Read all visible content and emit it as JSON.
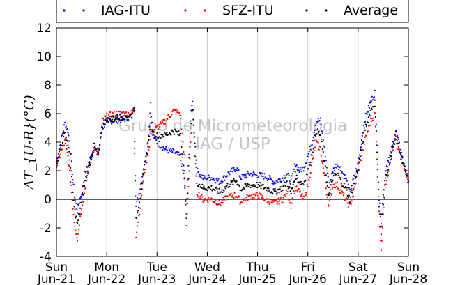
{
  "chart_data": {
    "type": "scatter",
    "title": "",
    "xlabel": "",
    "ylabel": "ΔT_{U-R}(°C)",
    "ylim": [
      -4,
      12
    ],
    "yticks": [
      -4,
      -2,
      0,
      2,
      4,
      6,
      8,
      10,
      12
    ],
    "xlim": [
      "2015-06-21",
      "2015-06-28"
    ],
    "x_ticks": [
      {
        "x": "2015-06-21",
        "day": "Sun",
        "date": "Jun-21"
      },
      {
        "x": "2015-06-22",
        "day": "Mon",
        "date": "Jun-22"
      },
      {
        "x": "2015-06-23",
        "day": "Tue",
        "date": "Jun-23"
      },
      {
        "x": "2015-06-24",
        "day": "Wed",
        "date": "Jun-24"
      },
      {
        "x": "2015-06-25",
        "day": "Thu",
        "date": "Jun-25"
      },
      {
        "x": "2015-06-26",
        "day": "Fri",
        "date": "Jun-26"
      },
      {
        "x": "2015-06-27",
        "day": "Sat",
        "date": "Jun-27"
      },
      {
        "x": "2015-06-28",
        "day": "Sun",
        "date": "Jun-28"
      }
    ],
    "grid": "vertical",
    "reference_line_y": 0,
    "legend": {
      "placement": "top, outside plot"
    },
    "watermark": [
      "Grupo de Micrometeorologia",
      "IAG / USP"
    ],
    "series": [
      {
        "name": "IAG-ITU",
        "color": "#0000ff",
        "points": [
          [
            "2015-06-21T00:00",
            2.6
          ],
          [
            "2015-06-21T02:00",
            4.0
          ],
          [
            "2015-06-21T04:00",
            5.3
          ],
          [
            "2015-06-21T05:30",
            4.8
          ],
          [
            "2015-06-21T07:00",
            3.0
          ],
          [
            "2015-06-21T08:30",
            0.3
          ],
          [
            "2015-06-21T10:00",
            -0.8
          ],
          [
            "2015-06-21T12:00",
            0.5
          ],
          [
            "2015-06-21T14:00",
            2.0
          ],
          [
            "2015-06-21T16:00",
            2.8
          ],
          [
            "2015-06-21T18:00",
            3.6
          ],
          [
            "2015-06-21T20:00",
            3.2
          ],
          [
            "2015-06-21T22:00",
            5.0
          ],
          [
            "2015-06-22T00:00",
            5.5
          ],
          [
            "2015-06-22T04:00",
            5.5
          ],
          [
            "2015-06-22T08:00",
            5.6
          ],
          [
            "2015-06-22T12:00",
            5.8
          ],
          [
            "2015-06-22T13:00",
            6.6
          ],
          [
            "2015-06-22T14:00",
            -0.5
          ],
          [
            "2015-06-22T16:00",
            0.8
          ],
          [
            "2015-06-22T18:00",
            2.5
          ],
          [
            "2015-06-22T20:00",
            4.5
          ],
          [
            "2015-06-22T21:00",
            6.8
          ],
          [
            "2015-06-22T22:00",
            4.5
          ],
          [
            "2015-06-23T00:00",
            4.0
          ],
          [
            "2015-06-23T04:00",
            3.5
          ],
          [
            "2015-06-23T08:00",
            3.3
          ],
          [
            "2015-06-23T11:00",
            3.0
          ],
          [
            "2015-06-23T13:00",
            1.5
          ],
          [
            "2015-06-23T14:00",
            -1.0
          ],
          [
            "2015-06-23T16:00",
            5.5
          ],
          [
            "2015-06-23T17:00",
            7.0
          ],
          [
            "2015-06-23T19:00",
            2.0
          ],
          [
            "2015-06-23T22:00",
            1.5
          ],
          [
            "2015-06-24T02:00",
            1.5
          ],
          [
            "2015-06-24T06:00",
            1.2
          ],
          [
            "2015-06-24T10:00",
            1.8
          ],
          [
            "2015-06-24T14:00",
            2.2
          ],
          [
            "2015-06-24T16:00",
            1.5
          ],
          [
            "2015-06-24T20:00",
            1.8
          ],
          [
            "2015-06-25T00:00",
            1.7
          ],
          [
            "2015-06-25T04:00",
            1.6
          ],
          [
            "2015-06-25T08:00",
            1.2
          ],
          [
            "2015-06-25T12:00",
            1.5
          ],
          [
            "2015-06-25T14:00",
            1.8
          ],
          [
            "2015-06-25T16:00",
            1.2
          ],
          [
            "2015-06-25T18:00",
            2.5
          ],
          [
            "2015-06-25T20:00",
            2.0
          ],
          [
            "2015-06-25T22:00",
            2.2
          ],
          [
            "2015-06-26T00:00",
            3.0
          ],
          [
            "2015-06-26T02:00",
            4.0
          ],
          [
            "2015-06-26T04:00",
            5.5
          ],
          [
            "2015-06-26T06:00",
            5.5
          ],
          [
            "2015-06-26T08:00",
            3.5
          ],
          [
            "2015-06-26T10:00",
            1.0
          ],
          [
            "2015-06-26T12:00",
            2.0
          ],
          [
            "2015-06-26T14:00",
            2.5
          ],
          [
            "2015-06-26T16:00",
            2.0
          ],
          [
            "2015-06-26T18:00",
            1.5
          ],
          [
            "2015-06-26T20:00",
            0.5
          ],
          [
            "2015-06-26T22:00",
            1.5
          ],
          [
            "2015-06-27T00:00",
            2.5
          ],
          [
            "2015-06-27T03:00",
            5.5
          ],
          [
            "2015-06-27T06:00",
            6.8
          ],
          [
            "2015-06-27T08:00",
            7.5
          ],
          [
            "2015-06-27T09:00",
            4.0
          ],
          [
            "2015-06-27T10:00",
            0.0
          ],
          [
            "2015-06-27T11:00",
            -1.5
          ],
          [
            "2015-06-27T13:00",
            2.0
          ],
          [
            "2015-06-27T16:00",
            3.5
          ],
          [
            "2015-06-27T18:00",
            4.8
          ],
          [
            "2015-06-27T21:00",
            3.0
          ],
          [
            "2015-06-28T00:00",
            1.2
          ]
        ]
      },
      {
        "name": "SFZ-ITU",
        "color": "#ff0000",
        "points": [
          [
            "2015-06-21T00:00",
            2.3
          ],
          [
            "2015-06-21T02:00",
            3.2
          ],
          [
            "2015-06-21T04:00",
            4.0
          ],
          [
            "2015-06-21T05:30",
            3.0
          ],
          [
            "2015-06-21T07:00",
            1.0
          ],
          [
            "2015-06-21T08:30",
            -1.5
          ],
          [
            "2015-06-21T10:00",
            -2.8
          ],
          [
            "2015-06-21T12:00",
            -0.5
          ],
          [
            "2015-06-21T14:00",
            1.0
          ],
          [
            "2015-06-21T16:00",
            2.5
          ],
          [
            "2015-06-21T18:00",
            3.8
          ],
          [
            "2015-06-21T20:00",
            3.0
          ],
          [
            "2015-06-21T22:00",
            5.5
          ],
          [
            "2015-06-22T00:00",
            5.8
          ],
          [
            "2015-06-22T04:00",
            6.0
          ],
          [
            "2015-06-22T08:00",
            6.0
          ],
          [
            "2015-06-22T12:00",
            6.0
          ],
          [
            "2015-06-22T13:00",
            6.2
          ],
          [
            "2015-06-22T14:00",
            -2.5
          ],
          [
            "2015-06-22T16:00",
            -0.5
          ],
          [
            "2015-06-22T18:00",
            2.0
          ],
          [
            "2015-06-22T20:00",
            3.5
          ],
          [
            "2015-06-22T21:00",
            4.5
          ],
          [
            "2015-06-22T22:00",
            4.8
          ],
          [
            "2015-06-23T00:00",
            5.0
          ],
          [
            "2015-06-23T04:00",
            5.5
          ],
          [
            "2015-06-23T08:00",
            6.2
          ],
          [
            "2015-06-23T11:00",
            6.0
          ],
          [
            "2015-06-23T13:00",
            3.0
          ],
          [
            "2015-06-23T14:00",
            -2.0
          ],
          [
            "2015-06-23T16:00",
            4.0
          ],
          [
            "2015-06-23T17:00",
            6.0
          ],
          [
            "2015-06-23T19:00",
            0.5
          ],
          [
            "2015-06-23T22:00",
            0.0
          ],
          [
            "2015-06-24T02:00",
            0.0
          ],
          [
            "2015-06-24T06:00",
            -0.3
          ],
          [
            "2015-06-24T10:00",
            0.2
          ],
          [
            "2015-06-24T14:00",
            0.3
          ],
          [
            "2015-06-24T16:00",
            -0.2
          ],
          [
            "2015-06-24T20:00",
            0.2
          ],
          [
            "2015-06-25T00:00",
            0.3
          ],
          [
            "2015-06-25T04:00",
            0.0
          ],
          [
            "2015-06-25T08:00",
            -0.3
          ],
          [
            "2015-06-25T12:00",
            0.0
          ],
          [
            "2015-06-25T14:00",
            0.5
          ],
          [
            "2015-06-25T16:00",
            -0.4
          ],
          [
            "2015-06-25T18:00",
            0.8
          ],
          [
            "2015-06-25T20:00",
            0.5
          ],
          [
            "2015-06-25T22:00",
            0.0
          ],
          [
            "2015-06-26T00:00",
            1.0
          ],
          [
            "2015-06-26T02:00",
            2.5
          ],
          [
            "2015-06-26T04:00",
            4.0
          ],
          [
            "2015-06-26T06:00",
            3.5
          ],
          [
            "2015-06-26T08:00",
            1.5
          ],
          [
            "2015-06-26T10:00",
            -0.5
          ],
          [
            "2015-06-26T12:00",
            1.0
          ],
          [
            "2015-06-26T14:00",
            1.0
          ],
          [
            "2015-06-26T16:00",
            0.5
          ],
          [
            "2015-06-26T18:00",
            0.0
          ],
          [
            "2015-06-26T20:00",
            -0.5
          ],
          [
            "2015-06-26T22:00",
            0.5
          ],
          [
            "2015-06-27T00:00",
            2.0
          ],
          [
            "2015-06-27T03:00",
            4.0
          ],
          [
            "2015-06-27T06:00",
            5.5
          ],
          [
            "2015-06-27T08:00",
            6.0
          ],
          [
            "2015-06-27T09:00",
            3.0
          ],
          [
            "2015-06-27T10:00",
            -1.0
          ],
          [
            "2015-06-27T11:00",
            -3.5
          ],
          [
            "2015-06-27T13:00",
            1.0
          ],
          [
            "2015-06-27T16:00",
            3.0
          ],
          [
            "2015-06-27T18:00",
            4.2
          ],
          [
            "2015-06-27T21:00",
            2.5
          ],
          [
            "2015-06-28T00:00",
            1.5
          ]
        ]
      },
      {
        "name": "Average",
        "color": "#000000",
        "points": [
          [
            "2015-06-21T00:00",
            2.5
          ],
          [
            "2015-06-21T02:00",
            3.6
          ],
          [
            "2015-06-21T04:00",
            4.6
          ],
          [
            "2015-06-21T05:30",
            3.9
          ],
          [
            "2015-06-21T07:00",
            2.0
          ],
          [
            "2015-06-21T08:30",
            -0.6
          ],
          [
            "2015-06-21T10:00",
            -1.8
          ],
          [
            "2015-06-21T12:00",
            0.0
          ],
          [
            "2015-06-21T14:00",
            1.5
          ],
          [
            "2015-06-21T16:00",
            2.6
          ],
          [
            "2015-06-21T18:00",
            3.7
          ],
          [
            "2015-06-21T20:00",
            3.1
          ],
          [
            "2015-06-21T22:00",
            5.2
          ],
          [
            "2015-06-22T00:00",
            5.6
          ],
          [
            "2015-06-22T04:00",
            5.7
          ],
          [
            "2015-06-22T08:00",
            5.8
          ],
          [
            "2015-06-22T12:00",
            5.9
          ],
          [
            "2015-06-22T13:00",
            6.4
          ],
          [
            "2015-06-22T14:00",
            -1.5
          ],
          [
            "2015-06-22T16:00",
            0.2
          ],
          [
            "2015-06-22T18:00",
            2.2
          ],
          [
            "2015-06-22T20:00",
            4.0
          ],
          [
            "2015-06-22T21:00",
            5.6
          ],
          [
            "2015-06-22T22:00",
            4.6
          ],
          [
            "2015-06-23T00:00",
            4.5
          ],
          [
            "2015-06-23T04:00",
            4.5
          ],
          [
            "2015-06-23T08:00",
            4.8
          ],
          [
            "2015-06-23T11:00",
            4.5
          ],
          [
            "2015-06-23T13:00",
            2.2
          ],
          [
            "2015-06-23T14:00",
            -1.5
          ],
          [
            "2015-06-23T16:00",
            4.8
          ],
          [
            "2015-06-23T17:00",
            6.5
          ],
          [
            "2015-06-23T19:00",
            1.2
          ],
          [
            "2015-06-23T22:00",
            0.8
          ],
          [
            "2015-06-24T02:00",
            0.8
          ],
          [
            "2015-06-24T06:00",
            0.5
          ],
          [
            "2015-06-24T10:00",
            1.0
          ],
          [
            "2015-06-24T14:00",
            1.3
          ],
          [
            "2015-06-24T16:00",
            0.7
          ],
          [
            "2015-06-24T20:00",
            1.0
          ],
          [
            "2015-06-25T00:00",
            1.0
          ],
          [
            "2015-06-25T04:00",
            0.8
          ],
          [
            "2015-06-25T08:00",
            0.5
          ],
          [
            "2015-06-25T12:00",
            0.8
          ],
          [
            "2015-06-25T14:00",
            1.2
          ],
          [
            "2015-06-25T16:00",
            0.4
          ],
          [
            "2015-06-25T18:00",
            1.7
          ],
          [
            "2015-06-25T20:00",
            1.2
          ],
          [
            "2015-06-25T22:00",
            1.1
          ],
          [
            "2015-06-26T00:00",
            2.0
          ],
          [
            "2015-06-26T02:00",
            3.2
          ],
          [
            "2015-06-26T04:00",
            4.8
          ],
          [
            "2015-06-26T06:00",
            4.5
          ],
          [
            "2015-06-26T08:00",
            2.5
          ],
          [
            "2015-06-26T10:00",
            0.2
          ],
          [
            "2015-06-26T12:00",
            1.5
          ],
          [
            "2015-06-26T14:00",
            1.8
          ],
          [
            "2015-06-26T16:00",
            1.2
          ],
          [
            "2015-06-26T18:00",
            0.8
          ],
          [
            "2015-06-26T20:00",
            0.0
          ],
          [
            "2015-06-26T22:00",
            1.0
          ],
          [
            "2015-06-27T00:00",
            2.2
          ],
          [
            "2015-06-27T03:00",
            4.8
          ],
          [
            "2015-06-27T06:00",
            6.2
          ],
          [
            "2015-06-27T08:00",
            6.8
          ],
          [
            "2015-06-27T09:00",
            3.5
          ],
          [
            "2015-06-27T10:00",
            -0.5
          ],
          [
            "2015-06-27T11:00",
            -2.5
          ],
          [
            "2015-06-27T13:00",
            1.5
          ],
          [
            "2015-06-27T16:00",
            3.2
          ],
          [
            "2015-06-27T18:00",
            4.5
          ],
          [
            "2015-06-27T21:00",
            2.8
          ],
          [
            "2015-06-28T00:00",
            1.3
          ]
        ]
      }
    ]
  }
}
